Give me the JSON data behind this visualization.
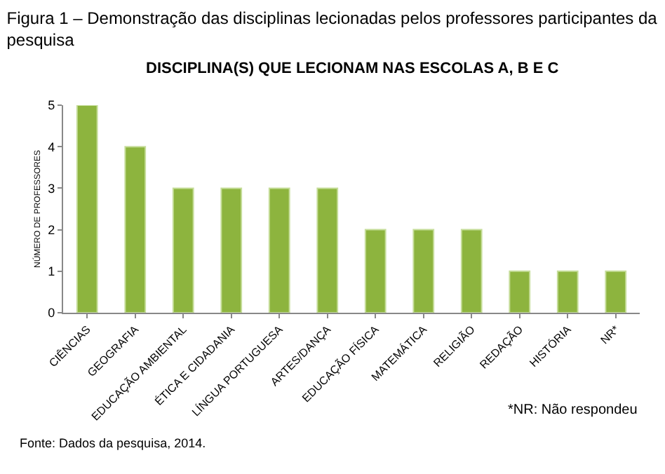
{
  "chart_data": {
    "type": "bar",
    "title": "Figura 1 – Demonstração das disciplinas lecionadas pelos professores participantes da pesquisa",
    "subtitle": "DISCIPLINA(S) QUE LECIONAM NAS ESCOLAS A, B E C",
    "ylabel": "NÚMERO DE PROFESSORES",
    "categories": [
      "CIÊNCIAS",
      "GEOGRAFIA",
      "EDUCAÇÃO AMBIENTAL",
      "ÉTICA E CIDADANIA",
      "LÍNGUA PORTUGUESA",
      "ARTES/DANÇA",
      "EDUCAÇÃO FÍSICA",
      "MATEMÁTICA",
      "RELIGIÃO",
      "REDAÇÃO",
      "HISTÓRIA",
      "NR*"
    ],
    "values": [
      5,
      4,
      3,
      3,
      3,
      3,
      2,
      2,
      2,
      1,
      1,
      1
    ],
    "color": "#8db43e",
    "ylim": [
      0,
      5
    ],
    "yticks": [
      0,
      1,
      2,
      3,
      4,
      5
    ],
    "annotations": [
      "*NR: Não respondeu",
      "Fonte: Dados da pesquisa, 2014."
    ]
  }
}
